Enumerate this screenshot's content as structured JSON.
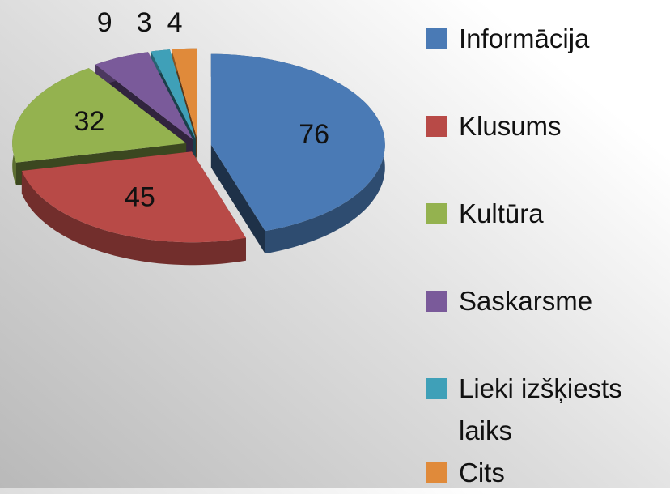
{
  "chart_data": {
    "type": "pie",
    "three_d": true,
    "exploded": true,
    "categories": [
      "Informācija",
      "Klusums",
      "Kultūra",
      "Saskarsme",
      "Lieki izšķiests laiks",
      "Cits"
    ],
    "values": [
      76,
      45,
      32,
      9,
      3,
      4
    ],
    "colors": [
      "#4a7ab5",
      "#b84a47",
      "#94b24f",
      "#7a5a9a",
      "#3fa0b8",
      "#e08a3a"
    ],
    "legend": "right"
  }
}
